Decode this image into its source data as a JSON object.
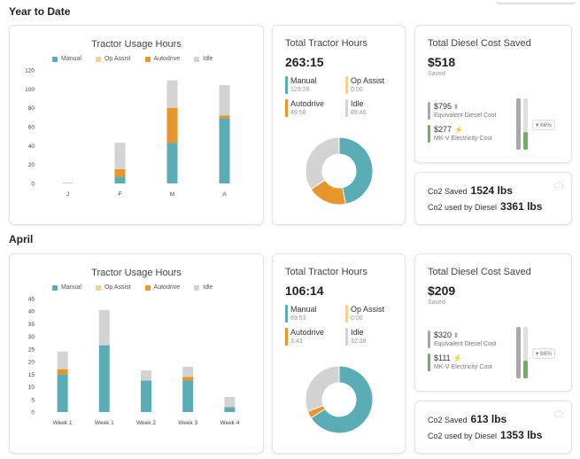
{
  "colors": {
    "manual": "#5aadb4",
    "op_assist": "#f3d18f",
    "autodrive": "#e8962a",
    "idle": "#d3d3d3",
    "diesel_bar": "#a9a9a9",
    "electric_bar": "#6db35a"
  },
  "sections": [
    {
      "title": "Year to Date",
      "usage_chart": {
        "title": "Tractor Usage Hours",
        "legend": [
          "Manual",
          "Op Assist",
          "Autodrive",
          "Idle"
        ],
        "chart_data": {
          "type": "bar",
          "stacked": true,
          "categories": [
            "J",
            "F",
            "M",
            "A"
          ],
          "y_ticks": [
            "120",
            "100",
            "80",
            "60",
            "40",
            "20",
            "0"
          ],
          "ylim": [
            0,
            120
          ],
          "series": [
            {
              "name": "Manual",
              "values": [
                0,
                7,
                43,
                69
              ]
            },
            {
              "name": "Op Assist",
              "values": [
                0,
                0,
                0,
                0
              ]
            },
            {
              "name": "Autodrive",
              "values": [
                0,
                8,
                37,
                3
              ]
            },
            {
              "name": "Idle",
              "values": [
                1,
                28,
                29,
                32
              ]
            }
          ]
        }
      },
      "hours": {
        "title": "Total Tractor Hours",
        "total": "263:15",
        "items": [
          {
            "label": "Manual",
            "value": "123:29",
            "key": "manual"
          },
          {
            "label": "Op Assist",
            "value": "0:00",
            "key": "op_assist"
          },
          {
            "label": "Autodrive",
            "value": "49:58",
            "key": "autodrive"
          },
          {
            "label": "Idle",
            "value": "89:46",
            "key": "idle"
          }
        ],
        "donut": [
          46.9,
          0,
          19.0,
          34.1
        ]
      },
      "cost": {
        "title": "Total Diesel Cost Saved",
        "value": "$518",
        "sub": "Saved",
        "diesel_amount": "$795",
        "diesel_label": "Equivalent Diesel Cost",
        "electric_amount": "$277",
        "electric_label": "MK-V Electricity Cost",
        "percent": "66%",
        "electric_fraction": 0.35
      },
      "co2": {
        "saved_label": "Co2 Saved",
        "saved_value": "1524 lbs",
        "diesel_label": "Co2 used by Diesel",
        "diesel_value": "3361 lbs"
      }
    },
    {
      "title": "April",
      "usage_chart": {
        "title": "Tractor Usage Hours",
        "legend": [
          "Manual",
          "Op Assist",
          "Autodrive",
          "Idle"
        ],
        "chart_data": {
          "type": "bar",
          "stacked": true,
          "categories": [
            "Week 1",
            "Week 1",
            "Week 2",
            "Week 3",
            "Week 4"
          ],
          "y_ticks": [
            "45",
            "40",
            "35",
            "30",
            "25",
            "20",
            "15",
            "10",
            "5",
            "0"
          ],
          "ylim": [
            0,
            45
          ],
          "series": [
            {
              "name": "Manual",
              "values": [
                15,
                26.5,
                12.5,
                12.5,
                2
              ]
            },
            {
              "name": "Op Assist",
              "values": [
                0,
                0,
                0,
                0,
                0
              ]
            },
            {
              "name": "Autodrive",
              "values": [
                2,
                0,
                0,
                1.5,
                0
              ]
            },
            {
              "name": "Idle",
              "values": [
                7,
                14,
                4,
                4,
                4
              ]
            }
          ]
        }
      },
      "hours": {
        "title": "Total Tractor Hours",
        "total": "106:14",
        "items": [
          {
            "label": "Manual",
            "value": "69:53",
            "key": "manual"
          },
          {
            "label": "Op Assist",
            "value": "0:00",
            "key": "op_assist"
          },
          {
            "label": "Autodrive",
            "value": "3:43",
            "key": "autodrive"
          },
          {
            "label": "Idle",
            "value": "32:38",
            "key": "idle"
          }
        ],
        "donut": [
          65.8,
          0,
          3.5,
          30.7
        ]
      },
      "cost": {
        "title": "Total Diesel Cost Saved",
        "value": "$209",
        "sub": "Saved",
        "diesel_amount": "$320",
        "diesel_label": "Equivalent Diesel Cost",
        "electric_amount": "$111",
        "electric_label": "MK-V Electricity Cost",
        "percent": "66%",
        "electric_fraction": 0.35
      },
      "co2": {
        "saved_label": "Co2 Saved",
        "saved_value": "613 lbs",
        "diesel_label": "Co2 used by Diesel",
        "diesel_value": "1353 lbs"
      }
    }
  ]
}
